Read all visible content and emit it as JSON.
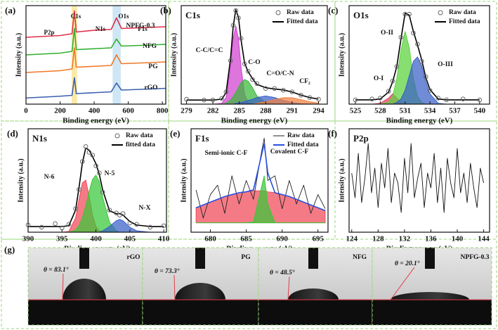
{
  "chart_data": [
    {
      "type": "line",
      "panel": "(a)",
      "xlabel": "Binding energy (eV)",
      "ylabel": "Intensity (a.u.)",
      "xlim": [
        0,
        820
      ],
      "ylim": [
        0,
        5.6
      ],
      "xticks": [
        0,
        200,
        400,
        600,
        800
      ],
      "bands": [
        {
          "range": [
            268,
            300
          ],
          "color": "#fbe9a8"
        },
        {
          "range": [
            508,
            556
          ],
          "color": "#cfe6f5"
        }
      ],
      "peak_labels": [
        {
          "text": "P2p",
          "color": "#3a9a9a"
        },
        {
          "text": "C1s",
          "color": "#2a9a2a"
        },
        {
          "text": "N1s",
          "color": "#3a5fb0"
        },
        {
          "text": "O1s",
          "color": "#2a9a9a"
        },
        {
          "text": "F1s",
          "color": "#3a5fb0"
        }
      ],
      "x": [
        0,
        100,
        200,
        270,
        284,
        295,
        400,
        500,
        531,
        560,
        700,
        820
      ],
      "series": [
        {
          "name": "NPFG-0.3",
          "color": "#e0304a",
          "style": "line",
          "values": [
            3.8,
            3.85,
            3.9,
            4.0,
            5.3,
            4.1,
            4.2,
            4.25,
            4.9,
            4.3,
            4.35,
            4.4
          ]
        },
        {
          "name": "NFG",
          "color": "#30b030",
          "style": "line",
          "values": [
            2.8,
            2.85,
            2.9,
            3.0,
            4.3,
            3.1,
            3.15,
            3.2,
            3.7,
            3.3,
            3.35,
            3.4
          ]
        },
        {
          "name": "PG",
          "color": "#f07828",
          "style": "line",
          "values": [
            1.8,
            1.85,
            1.9,
            2.0,
            3.2,
            2.1,
            2.15,
            2.2,
            2.8,
            2.3,
            2.35,
            2.4
          ]
        },
        {
          "name": "rGO",
          "color": "#3a5fb0",
          "style": "line",
          "values": [
            0.35,
            0.4,
            0.45,
            0.5,
            1.5,
            0.6,
            0.65,
            0.7,
            1.2,
            0.8,
            0.85,
            0.9
          ]
        }
      ]
    },
    {
      "type": "line",
      "panel": "(b)",
      "title": "C1s",
      "xlabel": "Binding energy (eV)",
      "ylabel": "Intensity (a.u.)",
      "legend": "upper right",
      "xlim": [
        278.4,
        295
      ],
      "ylim": [
        0,
        1.2
      ],
      "xticks": [
        279,
        282,
        285,
        288,
        291,
        294
      ],
      "x": [
        279,
        281,
        282,
        283,
        283.5,
        284,
        284.3,
        284.6,
        284.9,
        285.2,
        285.6,
        286,
        286.5,
        287,
        288,
        289,
        290,
        291,
        292,
        293,
        294
      ],
      "series": [
        {
          "name": "Raw data",
          "color": "#666666",
          "style": "markers",
          "values": [
            0.06,
            0.05,
            0.05,
            0.07,
            0.15,
            0.53,
            0.96,
            1.14,
            1.05,
            0.8,
            0.49,
            0.4,
            0.3,
            0.25,
            0.19,
            0.19,
            0.17,
            0.15,
            0.11,
            0.08,
            0.06
          ]
        },
        {
          "name": "Fitted data",
          "color": "#000000",
          "style": "line",
          "values": [
            0.05,
            0.05,
            0.05,
            0.06,
            0.14,
            0.55,
            0.94,
            1.15,
            1.06,
            0.78,
            0.5,
            0.395,
            0.31,
            0.24,
            0.2,
            0.185,
            0.173,
            0.148,
            0.11,
            0.08,
            0.062
          ]
        },
        {
          "name": "C-C/C=C",
          "color": "#d040d0",
          "style": "area",
          "values": [
            0,
            0,
            0,
            0.01,
            0.08,
            0.45,
            0.8,
            0.95,
            0.8,
            0.45,
            0.12,
            0.02,
            0,
            0,
            0,
            0,
            0,
            0,
            0,
            0,
            0
          ]
        },
        {
          "name": "C-O",
          "color": "#38b838",
          "style": "area",
          "values": [
            0,
            0,
            0,
            0,
            0.01,
            0.05,
            0.09,
            0.14,
            0.2,
            0.26,
            0.3,
            0.28,
            0.2,
            0.1,
            0.02,
            0,
            0,
            0,
            0,
            0,
            0
          ]
        },
        {
          "name": "C=O/C-N",
          "color": "#3a5fc8",
          "style": "area",
          "values": [
            0,
            0,
            0,
            0,
            0,
            0,
            0,
            0.01,
            0.015,
            0.02,
            0.03,
            0.045,
            0.06,
            0.08,
            0.1,
            0.08,
            0.045,
            0.02,
            0.005,
            0,
            0
          ]
        },
        {
          "name": "CF₂",
          "color": "#f08040",
          "style": "area",
          "values": [
            0,
            0,
            0,
            0,
            0,
            0,
            0,
            0,
            0,
            0,
            0,
            0,
            0,
            0.01,
            0.03,
            0.055,
            0.078,
            0.078,
            0.055,
            0.03,
            0.012
          ]
        }
      ]
    },
    {
      "type": "line",
      "panel": "(c)",
      "title": "O1s",
      "xlabel": "Binding energy (eV)",
      "ylabel": "Intensity (a.u.)",
      "legend": "upper right",
      "xlim": [
        524.24,
        541.2
      ],
      "ylim": [
        0,
        1.15
      ],
      "xticks": [
        525,
        528,
        531,
        534,
        537,
        540
      ],
      "x": [
        525,
        527,
        528,
        529,
        529.5,
        530,
        530.5,
        531,
        531.5,
        532,
        532.5,
        533,
        533.5,
        534,
        535,
        536,
        538,
        540
      ],
      "series": [
        {
          "name": "Raw data",
          "color": "#666666",
          "style": "markers",
          "values": [
            0.05,
            0.06,
            0.07,
            0.15,
            0.27,
            0.44,
            0.78,
            1.05,
            1.05,
            0.83,
            0.7,
            0.5,
            0.32,
            0.16,
            0.07,
            0.05,
            0.06,
            0.05
          ]
        },
        {
          "name": "Fitted data",
          "color": "#000000",
          "style": "line",
          "values": [
            0.05,
            0.05,
            0.06,
            0.14,
            0.26,
            0.44,
            0.76,
            1.06,
            1.04,
            0.85,
            0.69,
            0.52,
            0.31,
            0.17,
            0.06,
            0.05,
            0.05,
            0.05
          ]
        },
        {
          "name": "O-I",
          "color": "#e04060",
          "style": "area",
          "values": [
            0,
            0,
            0.01,
            0.07,
            0.12,
            0.07,
            0.02,
            0,
            0,
            0,
            0,
            0,
            0,
            0,
            0,
            0,
            0,
            0
          ]
        },
        {
          "name": "O-II",
          "color": "#5ad23a",
          "style": "area",
          "values": [
            0,
            0,
            0,
            0.02,
            0.09,
            0.3,
            0.63,
            0.85,
            0.66,
            0.3,
            0.09,
            0.02,
            0,
            0,
            0,
            0,
            0,
            0
          ]
        },
        {
          "name": "O-III",
          "color": "#3a5fc8",
          "style": "area",
          "values": [
            0,
            0,
            0,
            0,
            0,
            0.02,
            0.06,
            0.16,
            0.33,
            0.5,
            0.55,
            0.45,
            0.26,
            0.12,
            0.01,
            0,
            0,
            0
          ]
        }
      ]
    },
    {
      "type": "line",
      "panel": "(d)",
      "title": "N1s",
      "xlabel": "Binding energy (eV)",
      "ylabel": "Intensity (a.u.)",
      "legend": "upper right",
      "xlim": [
        390,
        410.4
      ],
      "ylim": [
        0,
        1.45
      ],
      "xticks": [
        390,
        395,
        400,
        405,
        410
      ],
      "x": [
        390,
        392,
        394,
        395,
        396,
        397,
        397.5,
        398,
        398.5,
        399,
        399.5,
        400,
        400.5,
        401,
        402,
        403,
        403.5,
        404,
        405,
        406,
        408,
        410
      ],
      "series": [
        {
          "name": "Raw data",
          "color": "#666666",
          "style": "markers",
          "values": [
            0.1,
            0.07,
            0.12,
            0.06,
            0.11,
            0.33,
            0.6,
            0.99,
            1.2,
            1.12,
            1.08,
            0.93,
            0.83,
            0.56,
            0.31,
            0.27,
            0.24,
            0.26,
            0.13,
            0.11,
            0.07,
            0.09
          ]
        },
        {
          "name": "fitted data",
          "color": "#000000",
          "style": "line",
          "values": [
            0.08,
            0.08,
            0.08,
            0.08,
            0.09,
            0.31,
            0.62,
            0.97,
            1.18,
            1.15,
            1.06,
            0.96,
            0.81,
            0.59,
            0.3,
            0.26,
            0.26,
            0.24,
            0.15,
            0.1,
            0.08,
            0.08
          ]
        },
        {
          "name": "N-6",
          "color": "#f04858",
          "style": "area",
          "values": [
            0,
            0,
            0,
            0,
            0.01,
            0.2,
            0.45,
            0.69,
            0.73,
            0.5,
            0.24,
            0.08,
            0.02,
            0,
            0,
            0,
            0,
            0,
            0,
            0,
            0,
            0
          ]
        },
        {
          "name": "N-5",
          "color": "#38c838",
          "style": "area",
          "values": [
            0,
            0,
            0,
            0,
            0,
            0.03,
            0.09,
            0.2,
            0.37,
            0.57,
            0.74,
            0.8,
            0.71,
            0.49,
            0.14,
            0.02,
            0,
            0,
            0,
            0,
            0,
            0
          ]
        },
        {
          "name": "N-X",
          "color": "#3a5fc8",
          "style": "area",
          "values": [
            0,
            0,
            0,
            0,
            0,
            0,
            0,
            0,
            0,
            0,
            0,
            0,
            0,
            0.02,
            0.08,
            0.16,
            0.18,
            0.16,
            0.07,
            0.02,
            0,
            0
          ]
        }
      ]
    },
    {
      "type": "line",
      "panel": "(e)",
      "title": "F1s",
      "xlabel": "Binding energy (eV)",
      "ylabel": "Intensity (a.u.)",
      "legend": "upper right",
      "xlim": [
        677.3,
        696.4
      ],
      "ylim": [
        -0.1,
        1.0
      ],
      "xticks": [
        680,
        685,
        690,
        695
      ],
      "x": [
        678,
        679,
        680,
        681,
        682,
        683,
        684,
        685,
        686,
        687,
        687.5,
        688,
        689,
        690,
        691,
        692,
        693,
        694,
        695,
        696
      ],
      "series": [
        {
          "name": "Raw data",
          "color": "#222222",
          "style": "thin-line",
          "values": [
            0.35,
            0.05,
            0.3,
            0.4,
            0.1,
            0.5,
            0.2,
            0.45,
            0.25,
            0.7,
            0.9,
            0.45,
            0.5,
            0.15,
            0.45,
            0.2,
            0.4,
            0.1,
            0.3,
            0.15
          ]
        },
        {
          "name": "Fitted data",
          "color": "#2a4fe0",
          "style": "line",
          "values": [
            0.16,
            0.19,
            0.22,
            0.25,
            0.28,
            0.3,
            0.32,
            0.33,
            0.35,
            0.68,
            0.84,
            0.53,
            0.32,
            0.3,
            0.28,
            0.25,
            0.22,
            0.19,
            0.16,
            0.13
          ]
        },
        {
          "name": "Semi-ionic C-F",
          "color": "#f04858",
          "style": "area",
          "values": [
            0.16,
            0.19,
            0.22,
            0.25,
            0.28,
            0.3,
            0.32,
            0.33,
            0.34,
            0.34,
            0.34,
            0.33,
            0.32,
            0.3,
            0.28,
            0.25,
            0.22,
            0.19,
            0.16,
            0.13
          ]
        },
        {
          "name": "Covalent C-F",
          "color": "#38c838",
          "style": "area",
          "values": [
            0,
            0,
            0,
            0,
            0,
            0,
            0,
            0,
            0.01,
            0.34,
            0.5,
            0.2,
            0,
            0,
            0,
            0,
            0,
            0,
            0,
            0
          ]
        }
      ]
    },
    {
      "type": "line",
      "panel": "(f)",
      "title": "P2p",
      "xlabel": "Binding energy (eV)",
      "ylabel": "Intensity (a.u.)",
      "xlim": [
        123.6,
        144.9
      ],
      "ylim": [
        0,
        1.05
      ],
      "xticks": [
        124,
        128,
        132,
        136,
        140,
        144
      ],
      "x": [
        124,
        124.5,
        125,
        125.5,
        126,
        126.5,
        127,
        127.5,
        128,
        128.5,
        129,
        129.5,
        130,
        130.5,
        131,
        131.5,
        132,
        132.5,
        133,
        133.5,
        134,
        134.5,
        135,
        135.5,
        136,
        136.5,
        137,
        137.5,
        138,
        138.5,
        139,
        139.5,
        140,
        140.5,
        141,
        141.5,
        142,
        142.5,
        143,
        143.5,
        144
      ],
      "series": [
        {
          "color": "#111111",
          "style": "thin-line",
          "values": [
            0.6,
            0.35,
            0.8,
            0.3,
            0.55,
            0.9,
            0.4,
            0.65,
            0.25,
            0.7,
            0.45,
            0.85,
            0.3,
            0.6,
            0.5,
            0.2,
            0.75,
            0.4,
            0.9,
            0.35,
            0.55,
            0.7,
            0.25,
            0.6,
            0.45,
            0.8,
            0.3,
            0.65,
            0.2,
            0.75,
            0.5,
            0.35,
            0.85,
            0.4,
            0.6,
            0.3,
            0.7,
            0.45,
            0.25,
            0.65,
            0.5
          ]
        }
      ]
    }
  ],
  "photos": {
    "panel": "(g)",
    "items": [
      {
        "sample": "rGO",
        "angle": "θ = 83.1°"
      },
      {
        "sample": "PG",
        "angle": "θ = 73.3°"
      },
      {
        "sample": "NFG",
        "angle": "θ = 48.5°"
      },
      {
        "sample": "NPFG-0.3",
        "angle": "θ = 20.1°"
      }
    ]
  }
}
